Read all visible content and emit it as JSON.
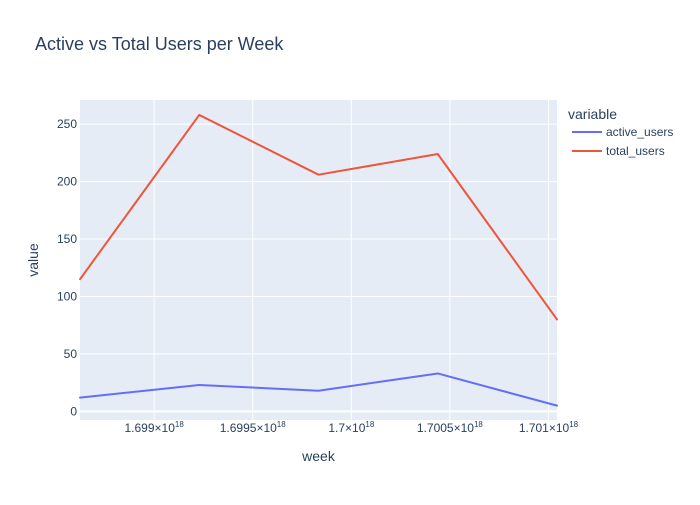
{
  "chart_data": {
    "type": "line",
    "title": "Active vs Total Users per Week",
    "xlabel": "week",
    "ylabel": "value",
    "x": [
      1698624000000000000,
      1699228800000000000,
      1699833600000000000,
      1700438400000000000,
      1701043200000000000
    ],
    "xlim": [
      1698624000000000000,
      1701043200000000000
    ],
    "x_ticks": [
      1699000000000000000,
      1699500000000000000,
      1700000000000000000,
      1700500000000000000,
      1701000000000000000
    ],
    "x_tick_labels": [
      {
        "mantissa": "1.699",
        "exponent": "18"
      },
      {
        "mantissa": "1.6995",
        "exponent": "18"
      },
      {
        "mantissa": "1.7",
        "exponent": "18"
      },
      {
        "mantissa": "1.7005",
        "exponent": "18"
      },
      {
        "mantissa": "1.701",
        "exponent": "18"
      }
    ],
    "ylim": [
      -7.5,
      271
    ],
    "y_ticks": [
      0,
      50,
      100,
      150,
      200,
      250
    ],
    "grid": true,
    "legend": {
      "title": "variable",
      "placement": "right"
    },
    "series": [
      {
        "name": "active_users",
        "color": "#636efa",
        "values": [
          12,
          23,
          18,
          33,
          5
        ]
      },
      {
        "name": "total_users",
        "color": "#ef553b",
        "values": [
          115,
          258,
          206,
          224,
          80
        ]
      }
    ],
    "colors": {
      "plot_bg": "#e5ecf6",
      "grid": "#ffffff",
      "text": "#2a3f5f"
    }
  }
}
